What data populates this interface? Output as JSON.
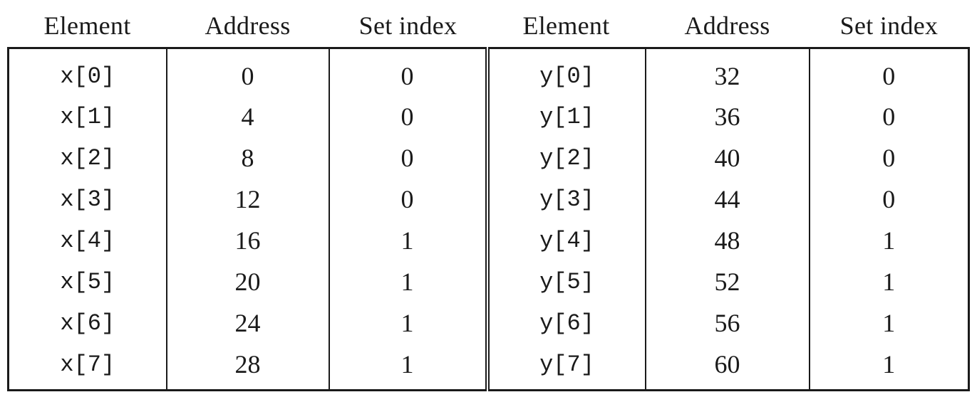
{
  "table": {
    "headers": [
      "Element",
      "Address",
      "Set index",
      "Element",
      "Address",
      "Set index"
    ],
    "rows": [
      {
        "x_element": "x[0]",
        "x_address": "0",
        "x_set": "0",
        "y_element": "y[0]",
        "y_address": "32",
        "y_set": "0"
      },
      {
        "x_element": "x[1]",
        "x_address": "4",
        "x_set": "0",
        "y_element": "y[1]",
        "y_address": "36",
        "y_set": "0"
      },
      {
        "x_element": "x[2]",
        "x_address": "8",
        "x_set": "0",
        "y_element": "y[2]",
        "y_address": "40",
        "y_set": "0"
      },
      {
        "x_element": "x[3]",
        "x_address": "12",
        "x_set": "0",
        "y_element": "y[3]",
        "y_address": "44",
        "y_set": "0"
      },
      {
        "x_element": "x[4]",
        "x_address": "16",
        "x_set": "1",
        "y_element": "y[4]",
        "y_address": "48",
        "y_set": "1"
      },
      {
        "x_element": "x[5]",
        "x_address": "20",
        "x_set": "1",
        "y_element": "y[5]",
        "y_address": "52",
        "y_set": "1"
      },
      {
        "x_element": "x[6]",
        "x_address": "24",
        "x_set": "1",
        "y_element": "y[6]",
        "y_address": "56",
        "y_set": "1"
      },
      {
        "x_element": "x[7]",
        "x_address": "28",
        "x_set": "1",
        "y_element": "y[7]",
        "y_address": "60",
        "y_set": "1"
      }
    ]
  }
}
